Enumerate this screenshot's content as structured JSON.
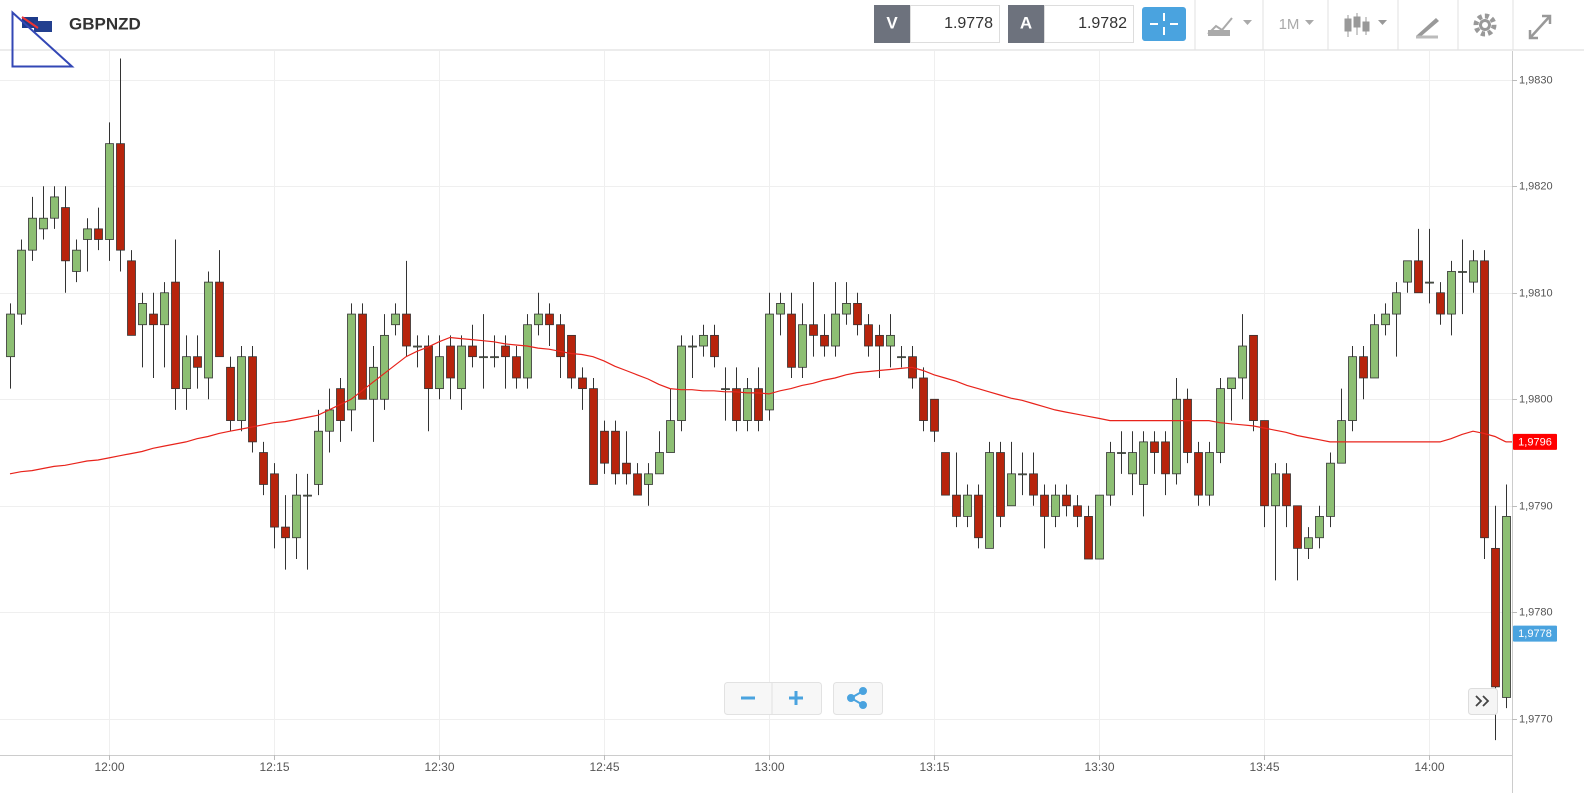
{
  "header": {
    "symbol": "GBPNZD",
    "sell_label": "V",
    "sell_price": "1.9778",
    "buy_label": "A",
    "buy_price": "1.9782",
    "timeframe": "1M"
  },
  "chart_data": {
    "type": "candlestick",
    "categories": [
      null,
      null,
      null,
      null,
      null,
      null,
      null,
      null,
      null,
      "12:00",
      null,
      null,
      null,
      null,
      null,
      null,
      null,
      null,
      null,
      null,
      null,
      null,
      null,
      null,
      "12:15",
      null,
      null,
      null,
      null,
      null,
      null,
      null,
      null,
      null,
      null,
      null,
      null,
      null,
      null,
      "12:30",
      null,
      null,
      null,
      null,
      null,
      null,
      null,
      null,
      null,
      null,
      null,
      null,
      null,
      null,
      "12:45",
      null,
      null,
      null,
      null,
      null,
      null,
      null,
      null,
      null,
      null,
      null,
      null,
      null,
      null,
      "13:00",
      null,
      null,
      null,
      null,
      null,
      null,
      null,
      null,
      null,
      null,
      null,
      null,
      null,
      null,
      "13:15",
      null,
      null,
      null,
      null,
      null,
      null,
      null,
      null,
      null,
      null,
      null,
      null,
      null,
      null,
      "13:30",
      null,
      null,
      null,
      null,
      null,
      null,
      null,
      null,
      null,
      null,
      null,
      null,
      null,
      null,
      "13:45",
      null,
      null,
      null,
      null,
      null,
      null,
      null,
      null,
      null,
      null,
      null,
      null,
      null,
      null,
      "14:00",
      null,
      null,
      null,
      null,
      null,
      null,
      null
    ],
    "open": [
      1.9804,
      1.9808,
      1.9814,
      1.9816,
      1.9817,
      1.9818,
      1.9812,
      1.9815,
      1.9816,
      1.9815,
      1.9824,
      1.9813,
      1.9807,
      1.9808,
      1.9807,
      1.9811,
      1.9801,
      1.9804,
      1.9802,
      1.9811,
      1.9803,
      1.9798,
      1.9804,
      1.9795,
      1.9793,
      1.9788,
      1.9787,
      1.9791,
      1.9792,
      1.9797,
      1.9801,
      1.9799,
      1.9808,
      1.98,
      1.98,
      1.9807,
      1.9808,
      1.9805,
      1.9805,
      1.9801,
      1.9805,
      1.9801,
      1.9805,
      1.9804,
      1.9804,
      1.9805,
      1.9804,
      1.9802,
      1.9807,
      1.9808,
      1.9807,
      1.9806,
      1.9802,
      1.9801,
      1.9797,
      1.9797,
      1.9794,
      1.9793,
      1.9792,
      1.9793,
      1.9795,
      1.9798,
      1.9805,
      1.9805,
      1.9806,
      1.9801,
      1.9801,
      1.9798,
      1.9801,
      1.9799,
      1.9808,
      1.9808,
      1.9803,
      1.9807,
      1.9806,
      1.9805,
      1.9808,
      1.9809,
      1.9807,
      1.9806,
      1.9805,
      1.9804,
      1.9804,
      1.9802,
      1.98,
      1.9795,
      1.9791,
      1.9789,
      1.9791,
      1.9786,
      1.9795,
      1.979,
      1.9793,
      1.9793,
      1.9791,
      1.9789,
      1.9791,
      1.979,
      1.9789,
      1.9785,
      1.9791,
      1.9795,
      1.9793,
      1.9792,
      1.9796,
      1.9796,
      1.9793,
      1.98,
      1.9795,
      1.9791,
      1.9795,
      1.9801,
      1.9802,
      1.9806,
      1.9798,
      1.979,
      1.9793,
      1.979,
      1.9786,
      1.9787,
      1.9789,
      1.9794,
      1.9798,
      1.9804,
      1.9802,
      1.9807,
      1.9808,
      1.9811,
      1.9813,
      1.9811,
      1.981,
      1.9808,
      1.9812,
      1.9811,
      1.9813,
      1.9786,
      1.9772
    ],
    "high": [
      1.9809,
      1.9815,
      1.9819,
      1.982,
      1.982,
      1.982,
      1.9815,
      1.9817,
      1.9818,
      1.9826,
      1.9832,
      1.9814,
      1.981,
      1.981,
      1.9811,
      1.9815,
      1.9806,
      1.9806,
      1.9812,
      1.9814,
      1.9804,
      1.9805,
      1.9805,
      1.9796,
      1.9794,
      1.9791,
      1.9793,
      1.9793,
      1.9799,
      1.9801,
      1.9802,
      1.9809,
      1.9809,
      1.9805,
      1.9808,
      1.9809,
      1.9813,
      1.9806,
      1.9806,
      1.9806,
      1.9806,
      1.9806,
      1.9807,
      1.9808,
      1.9806,
      1.9806,
      1.9805,
      1.9808,
      1.981,
      1.9809,
      1.9808,
      1.9806,
      1.9803,
      1.9802,
      1.9798,
      1.9798,
      1.9797,
      1.9794,
      1.9794,
      1.9797,
      1.9801,
      1.9806,
      1.9806,
      1.9807,
      1.9807,
      1.9803,
      1.9803,
      1.9802,
      1.9803,
      1.981,
      1.981,
      1.981,
      1.9809,
      1.9811,
      1.9808,
      1.9811,
      1.9811,
      1.981,
      1.9808,
      1.9807,
      1.9808,
      1.9805,
      1.9805,
      1.9803,
      1.98,
      1.9795,
      1.9795,
      1.9792,
      1.9792,
      1.9796,
      1.9796,
      1.9796,
      1.9795,
      1.9795,
      1.9792,
      1.9792,
      1.9792,
      1.9791,
      1.979,
      1.9791,
      1.9796,
      1.9797,
      1.9797,
      1.9797,
      1.9797,
      1.9797,
      1.9802,
      1.9801,
      1.9796,
      1.9796,
      1.9802,
      1.9802,
      1.9808,
      1.9806,
      1.9798,
      1.9794,
      1.9794,
      1.979,
      1.9788,
      1.979,
      1.9795,
      1.9801,
      1.9805,
      1.9805,
      1.9808,
      1.9809,
      1.9811,
      1.9813,
      1.9816,
      1.9816,
      1.9811,
      1.9813,
      1.9815,
      1.9814,
      1.9814,
      1.979,
      1.9792
    ],
    "low": [
      1.9801,
      1.9807,
      1.9813,
      1.9815,
      1.9816,
      1.981,
      1.9811,
      1.9812,
      1.9814,
      1.9813,
      1.9812,
      1.9806,
      1.9803,
      1.9802,
      1.9803,
      1.9799,
      1.9799,
      1.9801,
      1.98,
      1.9804,
      1.9797,
      1.9797,
      1.9795,
      1.9791,
      1.9786,
      1.9784,
      1.9785,
      1.9784,
      1.9791,
      1.9795,
      1.9796,
      1.9797,
      1.98,
      1.9796,
      1.9799,
      1.9806,
      1.9804,
      1.9803,
      1.9797,
      1.98,
      1.98,
      1.9799,
      1.9803,
      1.9801,
      1.9803,
      1.9801,
      1.9801,
      1.9801,
      1.9806,
      1.9805,
      1.9802,
      1.9801,
      1.9799,
      1.9792,
      1.9793,
      1.9792,
      1.9792,
      1.9791,
      1.979,
      1.9793,
      1.9795,
      1.9797,
      1.9802,
      1.9804,
      1.9803,
      1.9798,
      1.9797,
      1.9797,
      1.9797,
      1.9798,
      1.9806,
      1.9802,
      1.9802,
      1.9804,
      1.9804,
      1.9804,
      1.9807,
      1.9806,
      1.9804,
      1.9802,
      1.9803,
      1.9803,
      1.9801,
      1.9797,
      1.9796,
      1.9791,
      1.9788,
      1.9788,
      1.9786,
      1.9786,
      1.9788,
      1.979,
      1.9791,
      1.979,
      1.9786,
      1.9788,
      1.9789,
      1.9788,
      1.9785,
      1.9785,
      1.979,
      1.9793,
      1.9791,
      1.9789,
      1.9793,
      1.9791,
      1.9792,
      1.9794,
      1.979,
      1.979,
      1.9794,
      1.9798,
      1.98,
      1.9797,
      1.9788,
      1.9783,
      1.9788,
      1.9783,
      1.9785,
      1.9786,
      1.9788,
      1.9794,
      1.9797,
      1.98,
      1.9802,
      1.9806,
      1.9804,
      1.981,
      1.981,
      1.9809,
      1.9807,
      1.9806,
      1.9808,
      1.981,
      1.9785,
      1.9768,
      1.9771
    ],
    "close": [
      1.9808,
      1.9814,
      1.9817,
      1.9817,
      1.9819,
      1.9813,
      1.9814,
      1.9816,
      1.9815,
      1.9824,
      1.9814,
      1.9806,
      1.9809,
      1.9807,
      1.981,
      1.9801,
      1.9804,
      1.9803,
      1.9811,
      1.9804,
      1.9798,
      1.9804,
      1.9796,
      1.9792,
      1.9788,
      1.9787,
      1.9791,
      1.9791,
      1.9797,
      1.9799,
      1.9798,
      1.9808,
      1.98,
      1.9803,
      1.9806,
      1.9808,
      1.9805,
      1.9805,
      1.9801,
      1.9804,
      1.9802,
      1.9805,
      1.9804,
      1.9804,
      1.9804,
      1.9804,
      1.9802,
      1.9807,
      1.9808,
      1.9807,
      1.9804,
      1.9802,
      1.9801,
      1.9792,
      1.9794,
      1.9793,
      1.9793,
      1.9791,
      1.9793,
      1.9795,
      1.9798,
      1.9805,
      1.9805,
      1.9806,
      1.9804,
      1.9801,
      1.9798,
      1.9801,
      1.9798,
      1.9808,
      1.9809,
      1.9803,
      1.9807,
      1.9806,
      1.9805,
      1.9808,
      1.9809,
      1.9807,
      1.9805,
      1.9805,
      1.9806,
      1.9804,
      1.9802,
      1.9798,
      1.9797,
      1.9791,
      1.9789,
      1.9791,
      1.9787,
      1.9795,
      1.9789,
      1.9793,
      1.9793,
      1.9791,
      1.9789,
      1.9791,
      1.979,
      1.9789,
      1.9785,
      1.9791,
      1.9795,
      1.9795,
      1.9795,
      1.9796,
      1.9795,
      1.9793,
      1.98,
      1.9795,
      1.9791,
      1.9795,
      1.9801,
      1.9802,
      1.9805,
      1.9798,
      1.979,
      1.9793,
      1.979,
      1.9786,
      1.9787,
      1.9789,
      1.9794,
      1.9798,
      1.9804,
      1.9802,
      1.9807,
      1.9808,
      1.981,
      1.9813,
      1.981,
      1.9811,
      1.9808,
      1.9812,
      1.9812,
      1.9813,
      1.9787,
      1.9773,
      1.9789
    ],
    "up_color": "#8dbf73",
    "down_color": "#b7240c",
    "moving_average": {
      "color": "#e8231b",
      "last_value_label": "1,9796",
      "values": [
        1.9793,
        1.97932,
        1.97933,
        1.97935,
        1.97937,
        1.97938,
        1.9794,
        1.97942,
        1.97943,
        1.97945,
        1.97947,
        1.97949,
        1.97951,
        1.97954,
        1.97956,
        1.97958,
        1.9796,
        1.97963,
        1.97965,
        1.97968,
        1.9797,
        1.97972,
        1.97974,
        1.97976,
        1.97978,
        1.97979,
        1.97981,
        1.97983,
        1.97985,
        1.9799,
        1.97995,
        1.98,
        1.98008,
        1.98016,
        1.98024,
        1.98032,
        1.9804,
        1.98045,
        1.98049,
        1.98054,
        1.98058,
        1.98057,
        1.98056,
        1.98055,
        1.98054,
        1.98052,
        1.98051,
        1.9805,
        1.98048,
        1.98047,
        1.98045,
        1.98043,
        1.98042,
        1.9804,
        1.98036,
        1.98031,
        1.98027,
        1.98023,
        1.98019,
        1.98014,
        1.9801,
        1.98009,
        1.98009,
        1.98008,
        1.98008,
        1.98007,
        1.98007,
        1.98006,
        1.98006,
        1.98005,
        1.98008,
        1.9801,
        1.98013,
        1.98015,
        1.98018,
        1.9802,
        1.98023,
        1.98025,
        1.98026,
        1.98027,
        1.98028,
        1.98029,
        1.9803,
        1.98027,
        1.98023,
        1.9802,
        1.98017,
        1.98013,
        1.9801,
        1.98007,
        1.98004,
        1.98001,
        1.97999,
        1.97996,
        1.97993,
        1.9799,
        1.97988,
        1.97986,
        1.97984,
        1.97982,
        1.9798,
        1.9798,
        1.9798,
        1.9798,
        1.9798,
        1.9798,
        1.9798,
        1.9798,
        1.9798,
        1.9798,
        1.97978,
        1.97977,
        1.97976,
        1.97975,
        1.97973,
        1.97971,
        1.97969,
        1.97966,
        1.97964,
        1.97962,
        1.9796,
        1.9796,
        1.9796,
        1.9796,
        1.9796,
        1.9796,
        1.9796,
        1.9796,
        1.9796,
        1.9796,
        1.9796,
        1.97963,
        1.97967,
        1.9797,
        1.97968,
        1.97965,
        1.9796
      ]
    },
    "price_marker": {
      "value": 1.9778,
      "label": "1,9778",
      "color": "#4aa3df"
    },
    "ylim": [
      1.97666,
      1.98327
    ],
    "yticks": [
      {
        "value": 1.977,
        "label": "1,9770"
      },
      {
        "value": 1.978,
        "label": "1,9780"
      },
      {
        "value": 1.979,
        "label": "1,9790"
      },
      {
        "value": 1.98,
        "label": "1,9800"
      },
      {
        "value": 1.981,
        "label": "1,9810"
      },
      {
        "value": 1.982,
        "label": "1,9820"
      },
      {
        "value": 1.983,
        "label": "1,9830"
      }
    ],
    "grid": true
  }
}
